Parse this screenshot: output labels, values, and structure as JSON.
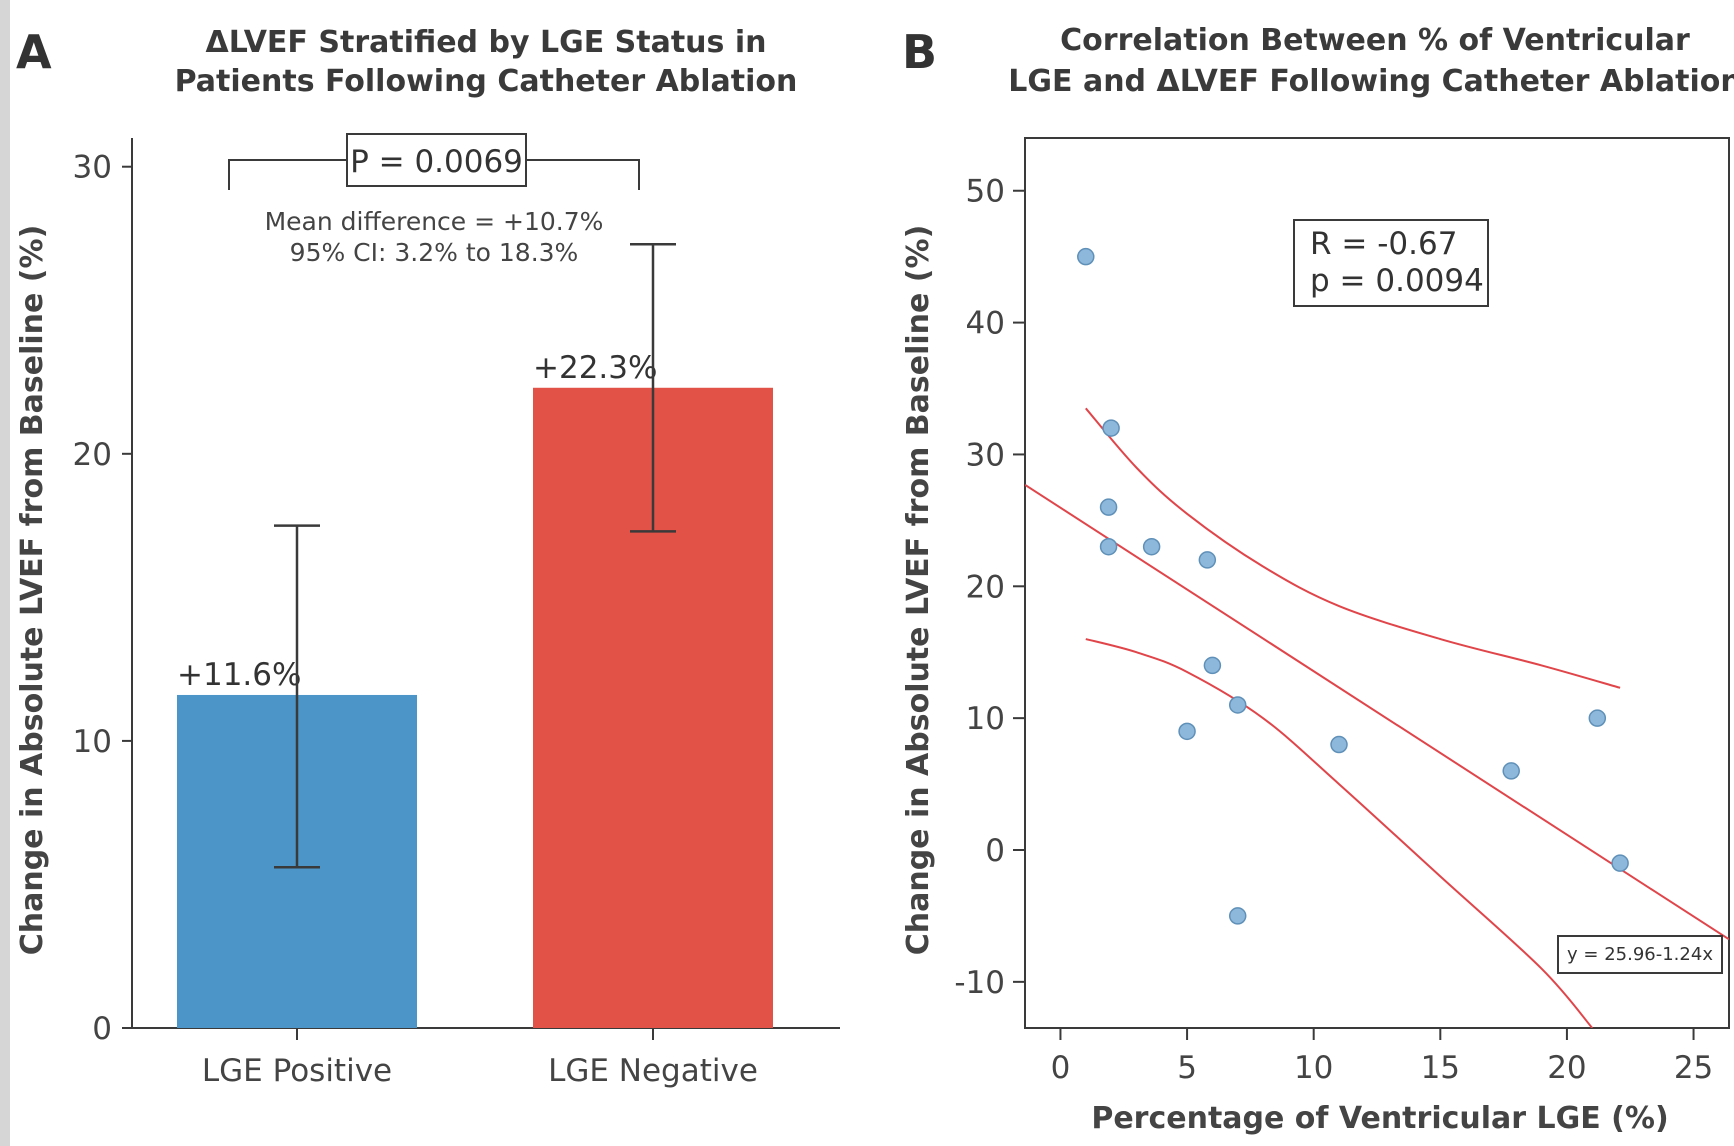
{
  "chart_data": [
    {
      "panel": "A",
      "type": "bar",
      "title_lines": [
        "ΔLVEF Stratified by LGE Status in",
        "Patients Following Catheter Ablation"
      ],
      "ylabel": "Change in Absolute LVEF from Baseline (%)",
      "xlabel": "",
      "ylim": [
        0,
        31
      ],
      "yticks": [
        0,
        10,
        20,
        30
      ],
      "categories": [
        "LGE Positive",
        "LGE Negative"
      ],
      "values": [
        11.6,
        22.3
      ],
      "value_labels": [
        "+11.6%",
        "+22.3%"
      ],
      "error_low": [
        5.6,
        17.3
      ],
      "error_high": [
        17.5,
        27.3
      ],
      "colors": [
        "#4b95c8",
        "#e35246"
      ],
      "significance": {
        "text": "P = 0.0069",
        "note_lines": [
          "Mean difference = +10.7%",
          "95% CI: 3.2% to 18.3%"
        ]
      },
      "grid": false
    },
    {
      "panel": "B",
      "type": "scatter",
      "title_lines": [
        "Correlation Between % of Ventricular",
        "LGE and ΔLVEF Following Catheter Ablation"
      ],
      "xlabel": "Percentage of Ventricular LGE (%)",
      "ylabel": "Change in Absolute LVEF from Baseline (%)",
      "xlim": [
        -1.4,
        26.4
      ],
      "ylim": [
        -13.5,
        54
      ],
      "xticks": [
        0,
        5,
        10,
        15,
        20,
        25
      ],
      "yticks": [
        -10,
        0,
        10,
        20,
        30,
        40,
        50
      ],
      "points": [
        {
          "x": 1.0,
          "y": 45
        },
        {
          "x": 2.0,
          "y": 32
        },
        {
          "x": 1.9,
          "y": 26
        },
        {
          "x": 1.9,
          "y": 23
        },
        {
          "x": 3.6,
          "y": 23
        },
        {
          "x": 5.8,
          "y": 22
        },
        {
          "x": 6.0,
          "y": 14
        },
        {
          "x": 7.0,
          "y": 11
        },
        {
          "x": 5.0,
          "y": 9
        },
        {
          "x": 11.0,
          "y": 8
        },
        {
          "x": 7.0,
          "y": -5
        },
        {
          "x": 17.8,
          "y": 6
        },
        {
          "x": 21.2,
          "y": 10
        },
        {
          "x": 22.1,
          "y": -1
        }
      ],
      "point_color": "#8db8dc",
      "regression": {
        "intercept": 25.96,
        "slope": -1.24,
        "x_range": [
          -1.4,
          26.4
        ],
        "color": "#e0454a"
      },
      "ci_upper": [
        [
          1.0,
          33.5
        ],
        [
          3.0,
          29.0
        ],
        [
          5.0,
          25.5
        ],
        [
          8.0,
          21.5
        ],
        [
          11.0,
          18.5
        ],
        [
          15.0,
          16.0
        ],
        [
          19.0,
          14.0
        ],
        [
          22.1,
          12.3
        ]
      ],
      "ci_lower": [
        [
          1.0,
          16.0
        ],
        [
          3.0,
          15.0
        ],
        [
          5.0,
          13.5
        ],
        [
          8.0,
          10.0
        ],
        [
          11.0,
          5.0
        ],
        [
          15.0,
          -2.0
        ],
        [
          19.0,
          -9.0
        ],
        [
          21.0,
          -13.5
        ]
      ],
      "stats_box": [
        "R = -0.67",
        "p = 0.0094"
      ],
      "equation": "y = 25.96-1.24x",
      "grid": false
    }
  ]
}
